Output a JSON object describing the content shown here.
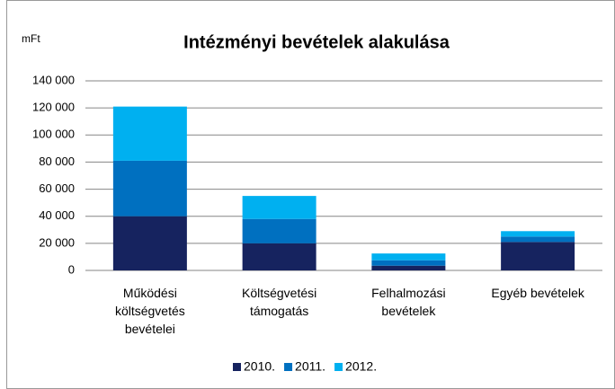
{
  "chart_data": {
    "type": "stacked_bar",
    "title": "Intézményi bevételek alakulása",
    "y_label": "mFt",
    "categories": [
      "Működési költségvetés bevételei",
      "Költségvetési támogatás",
      "Felhalmozási bevételek",
      "Egyéb bevételek"
    ],
    "series": [
      {
        "name": "2010.",
        "color": "#16235f",
        "values": [
          40000,
          20000,
          3500,
          21000
        ]
      },
      {
        "name": "2011.",
        "color": "#0070c0",
        "values": [
          41000,
          18000,
          4000,
          4000
        ]
      },
      {
        "name": "2012.",
        "color": "#00b0f0",
        "values": [
          40000,
          17000,
          5000,
          4000
        ]
      }
    ],
    "ylim": [
      0,
      140000
    ],
    "yticks": [
      0,
      {
        "value": 20000,
        "label": "20 000"
      },
      {
        "value": 40000,
        "label": "40 000"
      },
      {
        "value": 60000,
        "label": "60 000"
      },
      {
        "value": 80000,
        "label": "80 000"
      },
      {
        "value": 100000,
        "label": "100 000"
      },
      {
        "value": 120000,
        "label": "120 000"
      },
      {
        "value": 140000,
        "label": "140 000"
      }
    ],
    "grid": true,
    "legend": "bottom"
  }
}
